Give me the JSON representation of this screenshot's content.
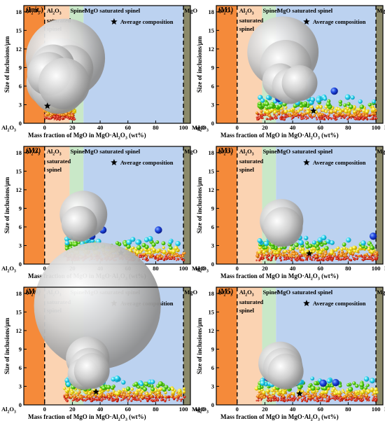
{
  "chart_data": [
    {
      "type": "scatter",
      "panel_label": "(Init.)",
      "avg": {
        "x": 2,
        "y": 2.8
      },
      "big": [
        [
          4,
          6.5,
          1.2
        ],
        [
          8,
          7.2,
          1.3
        ],
        [
          12,
          8.6,
          1.6
        ],
        [
          15,
          10.5,
          2
        ],
        [
          18,
          8.8,
          1.2
        ],
        [
          6,
          9.2,
          1.1
        ],
        [
          10,
          6,
          1.4
        ],
        [
          3,
          8,
          1.1
        ],
        [
          14,
          6.4,
          1.3
        ]
      ],
      "blue": [
        [
          2,
          5
        ],
        [
          5,
          4.6
        ],
        [
          10,
          5.2
        ],
        [
          16,
          5.4
        ],
        [
          22,
          4.5
        ]
      ]
    },
    {
      "type": "scatter",
      "panel_label": "(M1)",
      "avg": {
        "x": 55,
        "y": 2
      },
      "big": [
        [
          33,
          11.5,
          1.8
        ],
        [
          35,
          9.3,
          1.3
        ],
        [
          31,
          6.8,
          0.9
        ],
        [
          38,
          6,
          0.9
        ],
        [
          45,
          6.5,
          0.9
        ]
      ],
      "blue": [
        [
          30,
          4.6
        ],
        [
          32,
          5
        ],
        [
          70,
          5.2
        ],
        [
          30,
          4
        ]
      ]
    },
    {
      "type": "scatter",
      "panel_label": "(M2)",
      "avg": {
        "x": 55,
        "y": 1.8
      },
      "big": [
        [
          28,
          8,
          1.2
        ],
        [
          25,
          6.5,
          0.9
        ]
      ],
      "blue": [
        [
          32,
          5.5
        ],
        [
          42,
          5.5
        ],
        [
          82,
          5.5
        ],
        [
          25,
          4.8
        ],
        [
          34,
          4.5
        ]
      ]
    },
    {
      "type": "scatter",
      "panel_label": "(M3)",
      "avg": {
        "x": 52,
        "y": 1.7
      },
      "big": [
        [
          32,
          7,
          1.1
        ],
        [
          33,
          6,
          1
        ]
      ],
      "blue": [
        [
          30,
          5
        ],
        [
          40,
          5
        ],
        [
          98,
          4.5
        ],
        [
          35,
          4.5
        ]
      ]
    },
    {
      "type": "scatter",
      "panel_label": "(M4)",
      "avg": {
        "x": 37,
        "y": 2.1
      },
      "big": [
        [
          38,
          16,
          3.2
        ],
        [
          31,
          7.5,
          1.1
        ],
        [
          32,
          6,
          1
        ],
        [
          28,
          5,
          0.8
        ],
        [
          34,
          5.5,
          0.9
        ]
      ],
      "blue": [
        [
          33,
          5
        ],
        [
          37,
          5.2
        ],
        [
          30,
          4.5
        ],
        [
          24,
          4.2
        ]
      ]
    },
    {
      "type": "scatter",
      "panel_label": "(M5)",
      "avg": {
        "x": 45,
        "y": 1.8
      },
      "big": [
        [
          31,
          6.7,
          1.1
        ],
        [
          33,
          6,
          1
        ],
        [
          35,
          5.4,
          0.9
        ]
      ],
      "blue": [
        [
          33,
          5.2
        ],
        [
          34,
          4.8
        ],
        [
          22,
          4.4
        ],
        [
          28,
          4.4
        ],
        [
          62,
          3.5
        ],
        [
          71,
          3.6
        ]
      ]
    }
  ],
  "labels": {
    "region_al2o3": "Al",
    "region_al2o3_sub": "2",
    "region_al2o3_end": "O",
    "region_al2o3_sub2": "3",
    "region_sat_l1a": "Al",
    "region_sat_l1b": "O",
    "region_sat_l2": "saturated",
    "region_sat_l3": "spinel",
    "region_spinel": "Spinel",
    "region_mgo_sat": "MgO saturated spinel",
    "region_mgo": "MgO",
    "legend": "Average composition",
    "ylabel": "Size of inclusions/μm",
    "xlabel_a": "Mass fraction of MgO in MgO·Al",
    "xlabel_b": "O",
    "xlabel_c": " (wt%)",
    "x_left": "Al",
    "x_right": "MgO",
    "sub2": "2",
    "sub3": "3",
    "x_ticks": [
      "0",
      "20",
      "40",
      "60",
      "80",
      "100"
    ],
    "y_ticks": [
      "0",
      "3",
      "6",
      "9",
      "12",
      "15",
      "18"
    ]
  },
  "colors": {
    "al2o3": "#f58a3a",
    "sat_spinel": "#fbd3b2",
    "spinel": "#c9e8c8",
    "mgo_sat": "#bcd2f0",
    "mgo": "#8c8a6a"
  }
}
